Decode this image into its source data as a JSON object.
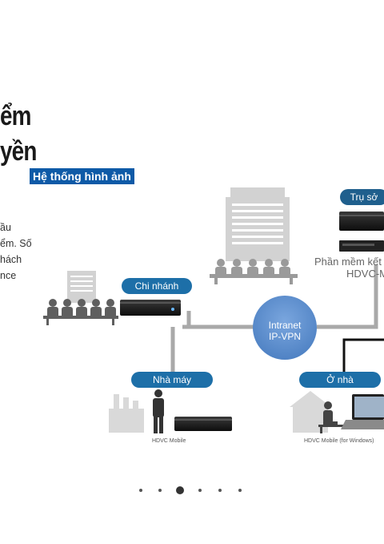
{
  "slide": {
    "heading_line1": "ểm",
    "heading_line2": "yền",
    "banner": "Hệ thống hình ảnh",
    "desc_lines": [
      "ầu",
      "ểm. Số",
      "hách",
      "nce"
    ]
  },
  "diagram": {
    "hq_label": "Trụ sở",
    "hq_software_line1": "Phần mềm kết",
    "hq_software_line2": "HDVC-M",
    "branch_label": "Chi nhánh",
    "cloud_line1": "Intranet",
    "cloud_line2": "IP-VPN",
    "factory_label": "Nhà máy",
    "home_label": "Ở nhà",
    "factory_caption": "HDVC Mobile",
    "home_caption": "HDVC Mobile (for Windows)"
  },
  "carousel": {
    "dot_count": 6,
    "active_index": 2
  },
  "colors": {
    "banner": "#0e5aa7",
    "pill": "#1d6fa8",
    "cloud": "#5d8fd0",
    "line": "#a9a9a9"
  }
}
